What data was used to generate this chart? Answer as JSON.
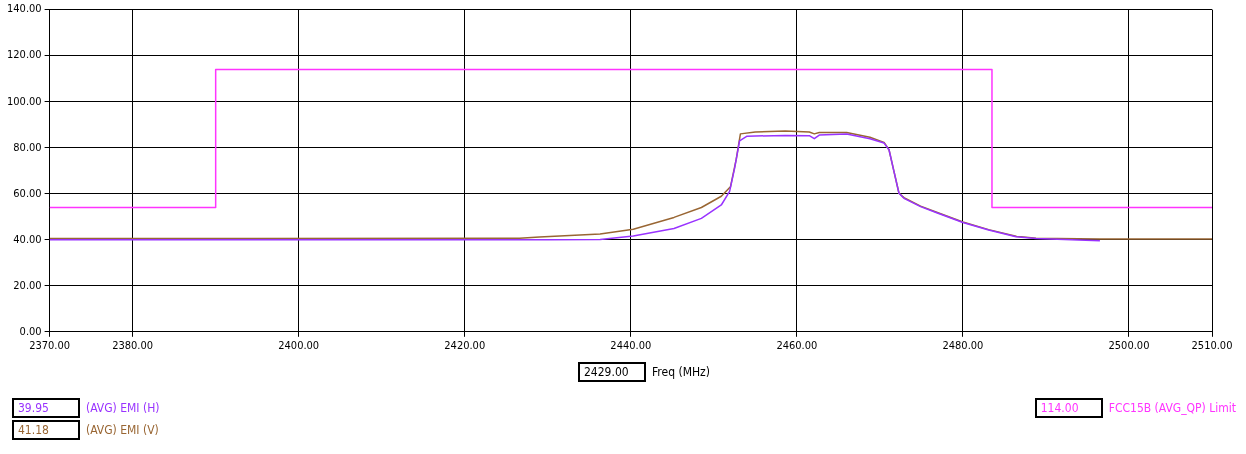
{
  "chart_data": {
    "type": "line",
    "xlabel": "Freq (MHz)",
    "annotations": [
      "2429.00",
      "39.95",
      "41.18",
      "114.00"
    ],
    "xlim": [
      2370,
      2510
    ],
    "xticks": [
      {
        "value": 2370,
        "label": "2370.00"
      },
      {
        "value": 2380,
        "label": "2380.00"
      },
      {
        "value": 2400,
        "label": "2400.00"
      },
      {
        "value": 2420,
        "label": "2420.00"
      },
      {
        "value": 2440,
        "label": "2440.00"
      },
      {
        "value": 2460,
        "label": "2460.00"
      },
      {
        "value": 2480,
        "label": "2480.00"
      },
      {
        "value": 2500,
        "label": "2500.00"
      },
      {
        "value": 2510,
        "label": "2510.00"
      }
    ],
    "ylim": [
      0,
      140
    ],
    "yticks": [
      {
        "value": 0,
        "label": "0.00"
      },
      {
        "value": 20,
        "label": "20.00"
      },
      {
        "value": 40,
        "label": "40.00"
      },
      {
        "value": 60,
        "label": "60.00"
      },
      {
        "value": 80,
        "label": "80.00"
      },
      {
        "value": 100,
        "label": "100.00"
      },
      {
        "value": 120,
        "label": "120.00"
      },
      {
        "value": 140,
        "label": "140.00"
      }
    ],
    "grid": true,
    "legend": "bottom",
    "marker": "none",
    "line_style": "solid",
    "series": [
      {
        "name": "(AVG) EMI (H)",
        "color": "#9933ff",
        "x": [
          2370,
          2430,
          2436.3,
          2440.3,
          2445.2,
          2448.5,
          2450.9,
          2451.9,
          2452.5,
          2453.1,
          2454,
          2458.6,
          2461.5,
          2462.1,
          2462.7,
          2466,
          2468.8,
          2470.5,
          2471.1,
          2471.7,
          2472.3,
          2472.9,
          2474.9,
          2477,
          2480,
          2483.1,
          2486.4,
          2488.8,
          2496.5
        ],
        "values": [
          39.95,
          40.0,
          40.1,
          41.6,
          44.9,
          49.3,
          55.1,
          61,
          71,
          83,
          85,
          85.3,
          85.2,
          83.9,
          85.5,
          85.9,
          83.9,
          82,
          79.1,
          69.6,
          60.2,
          58,
          54.4,
          51.5,
          47.5,
          44.2,
          41.3,
          40.5,
          39.6
        ]
      },
      {
        "name": "(AVG) EMI (V)",
        "color": "#996633",
        "x": [
          2370,
          2426.6,
          2429,
          2436.3,
          2440.3,
          2445.2,
          2448.5,
          2450.9,
          2452,
          2452.7,
          2453.2,
          2455,
          2458.6,
          2461.5,
          2462.1,
          2462.7,
          2466,
          2468.8,
          2470.5,
          2471.1,
          2471.7,
          2472.3,
          2472.9,
          2474.9,
          2477,
          2480,
          2483.1,
          2486.4,
          2488.8,
          2496.5,
          2510
        ],
        "values": [
          40.5,
          40.6,
          41.18,
          42.5,
          44.6,
          49.7,
          54,
          58.9,
          63,
          75,
          86,
          86.8,
          87.3,
          86.8,
          86.0,
          86.6,
          86.6,
          84.5,
          82.3,
          79.1,
          69.6,
          60.2,
          58.3,
          54.6,
          51.7,
          47.7,
          44.4,
          41.5,
          40.7,
          40.3,
          40.3
        ]
      },
      {
        "name": "FCC15B (AVG_QP) Limit",
        "type": "step",
        "color": "#ff33ff",
        "x": [
          2370,
          2390,
          2483.5,
          2510
        ],
        "values": [
          54,
          114,
          54,
          54
        ]
      }
    ]
  }
}
